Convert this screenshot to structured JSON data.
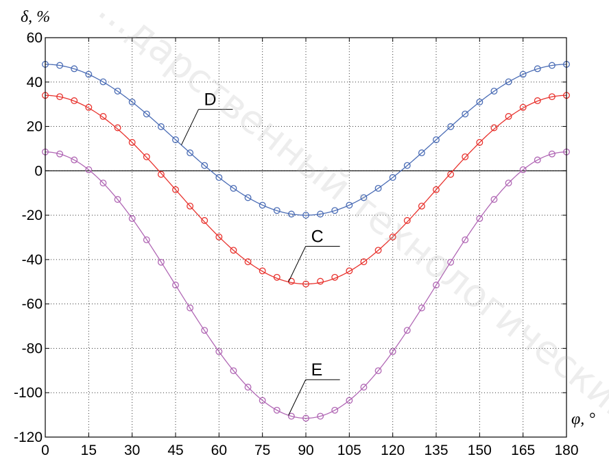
{
  "chart_data": {
    "type": "line",
    "ylabel": "δ, %",
    "xlabel": "φ, °",
    "xlim": [
      0,
      180
    ],
    "ylim": [
      -120,
      60
    ],
    "xticks": [
      0,
      15,
      30,
      45,
      60,
      75,
      90,
      105,
      120,
      135,
      150,
      165,
      180
    ],
    "yticks": [
      -120,
      -100,
      -80,
      -60,
      -40,
      -20,
      0,
      20,
      40,
      60
    ],
    "grid": true,
    "series": [
      {
        "name": "D",
        "color": "#4a6cb5",
        "amplitude": 34,
        "offset": 14,
        "x": [
          0,
          5,
          10,
          15,
          20,
          25,
          30,
          35,
          40,
          45,
          50,
          55,
          60,
          65,
          70,
          75,
          80,
          85,
          90,
          95,
          100,
          105,
          110,
          115,
          120,
          125,
          130,
          135,
          140,
          145,
          150,
          155,
          160,
          165,
          170,
          175,
          180
        ],
        "values": [
          48,
          47.5,
          46,
          43.5,
          40.1,
          35.9,
          31,
          25.6,
          19.9,
          14,
          8.1,
          2.4,
          -3,
          -7.9,
          -12.1,
          -15.5,
          -17.9,
          -19.5,
          -20,
          -19.5,
          -17.9,
          -15.5,
          -12.1,
          -7.9,
          -3,
          2.4,
          8.1,
          14,
          19.9,
          25.6,
          31,
          35.9,
          40.1,
          43.5,
          46,
          47.5,
          48
        ]
      },
      {
        "name": "C",
        "color": "#e8322d",
        "amplitude": 42.5,
        "offset": -8.5,
        "x": [
          0,
          5,
          10,
          15,
          20,
          25,
          30,
          35,
          40,
          45,
          50,
          55,
          60,
          65,
          70,
          75,
          80,
          85,
          90,
          95,
          100,
          105,
          110,
          115,
          120,
          125,
          130,
          135,
          140,
          145,
          150,
          155,
          160,
          165,
          170,
          175,
          180
        ],
        "values": [
          34,
          33.4,
          31.6,
          28.6,
          24.5,
          19.4,
          12.8,
          6.3,
          -1.6,
          -8.5,
          -15.9,
          -22.4,
          -29.8,
          -35.8,
          -41,
          -45.1,
          -48,
          -49.8,
          -51,
          -49.8,
          -48,
          -45.1,
          -41,
          -35.8,
          -29.8,
          -22.4,
          -15.9,
          -8.5,
          -1.6,
          6.3,
          12.8,
          19.4,
          24.5,
          28.6,
          31.6,
          33.4,
          34
        ]
      },
      {
        "name": "E",
        "color": "#b066b4",
        "amplitude": 60,
        "offset": -51.5,
        "x": [
          0,
          5,
          10,
          15,
          20,
          25,
          30,
          35,
          40,
          45,
          50,
          55,
          60,
          65,
          70,
          75,
          80,
          85,
          90,
          95,
          100,
          105,
          110,
          115,
          120,
          125,
          130,
          135,
          140,
          145,
          150,
          155,
          160,
          165,
          170,
          175,
          180
        ],
        "values": [
          8.5,
          7.6,
          4.9,
          0.5,
          -5.5,
          -12.9,
          -21.5,
          -31.1,
          -41.2,
          -51.5,
          -61.8,
          -71.9,
          -81.5,
          -90.1,
          -97.5,
          -103.5,
          -107.9,
          -110.6,
          -111.5,
          -110.6,
          -107.9,
          -103.5,
          -97.5,
          -90.1,
          -81.5,
          -71.9,
          -61.8,
          -51.5,
          -41.2,
          -31.1,
          -21.5,
          -12.9,
          -5.5,
          0.5,
          4.9,
          7.6,
          8.5
        ]
      }
    ],
    "labels": [
      {
        "text": "D",
        "series": "D",
        "at_x": 47
      },
      {
        "text": "C",
        "series": "C",
        "at_x": 84
      },
      {
        "text": "E",
        "series": "E",
        "at_x": 84
      }
    ],
    "watermark": "...дарственный технологический..."
  }
}
